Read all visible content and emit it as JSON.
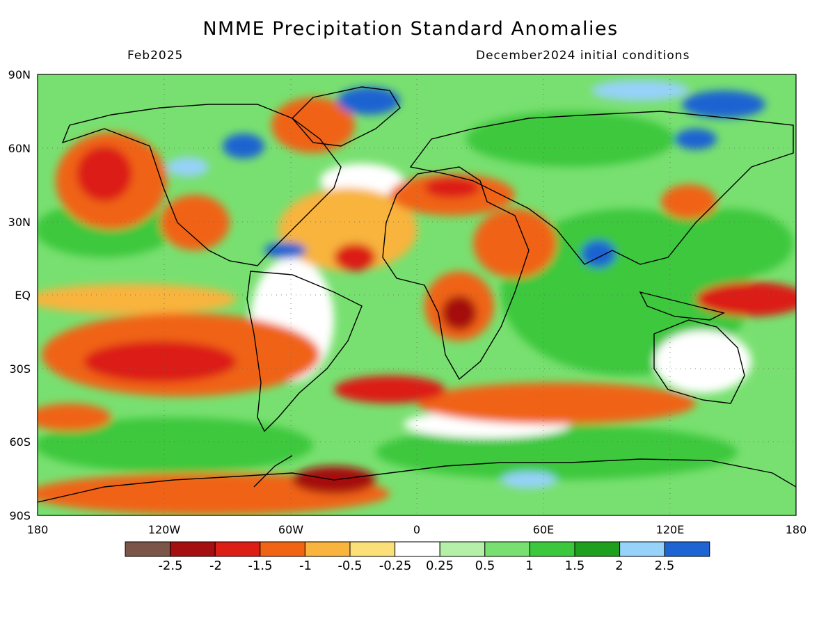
{
  "title": "NMME Precipitation Standard Anomalies",
  "subtitle_left": "Feb2025",
  "subtitle_right": "December2024 initial conditions",
  "map": {
    "lon_ticks": [
      "180",
      "120W",
      "60W",
      "0",
      "60E",
      "120E",
      "180"
    ],
    "lat_ticks": [
      "90N",
      "60N",
      "30N",
      "EQ",
      "30S",
      "60S",
      "90S"
    ],
    "colorbar_colors": [
      "#7a5548",
      "#a50f0f",
      "#dc1e14",
      "#f06414",
      "#f8b43c",
      "#fbe07a",
      "#ffffff",
      "#b4f0a8",
      "#78e070",
      "#3cc83c",
      "#1ea01e",
      "#96d2fa",
      "#1e64d2"
    ],
    "colorbar_labels": [
      "-2.5",
      "-2",
      "-1.5",
      "-1",
      "-0.5",
      "-0.25",
      "0.25",
      "0.5",
      "1",
      "1.5",
      "2",
      "2.5"
    ]
  }
}
